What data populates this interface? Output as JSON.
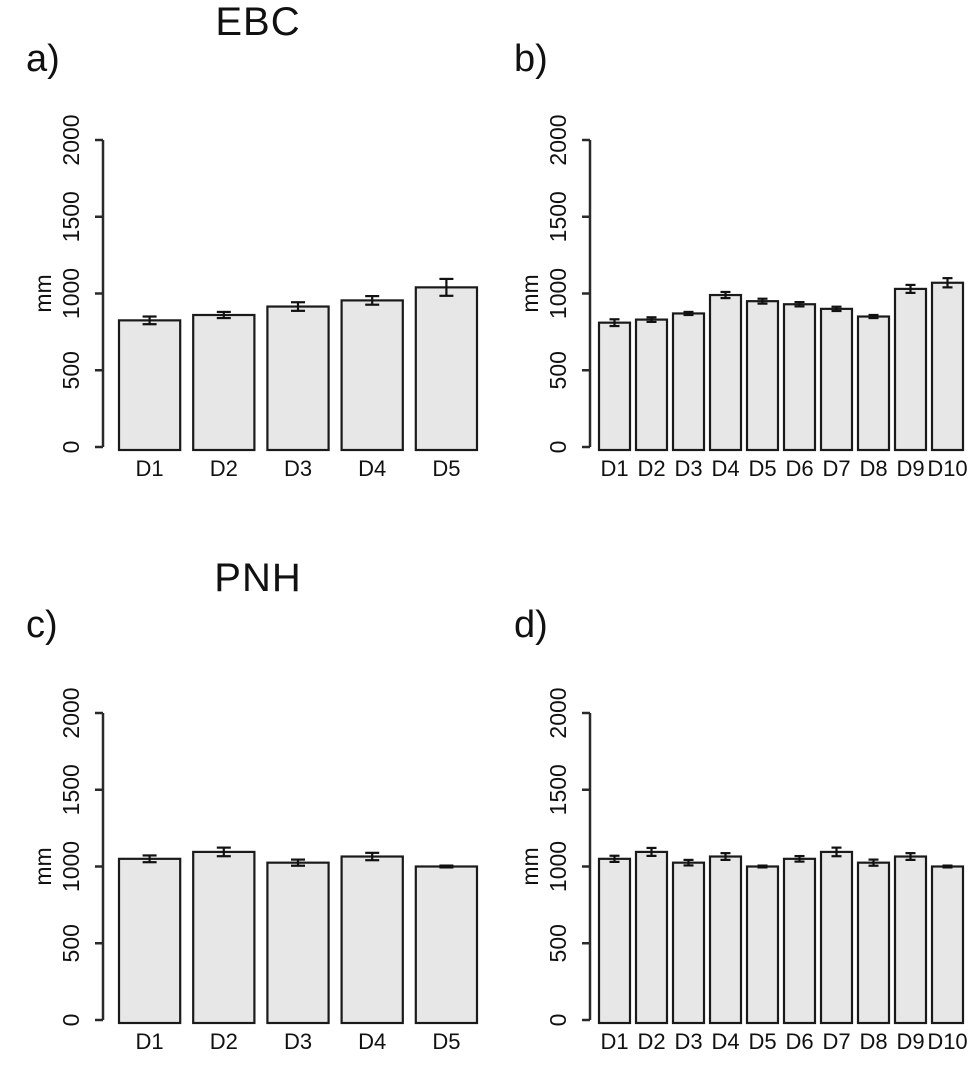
{
  "figure": {
    "sections": [
      {
        "title": "EBC"
      },
      {
        "title": "PNH"
      }
    ]
  },
  "chart_data": [
    {
      "id": "a",
      "panel_label": "a)",
      "section_title": "EBC",
      "type": "bar",
      "ylabel": "mm",
      "xlabel": "",
      "ylim": [
        0,
        2000
      ],
      "yticks": [
        0,
        500,
        1000,
        1500,
        2000
      ],
      "grid": false,
      "legend": "none",
      "bar_fill": "#e7e7e7",
      "bar_stroke": "#1a1a1a",
      "categories": [
        "D1",
        "D2",
        "D3",
        "D4",
        "D5"
      ],
      "values": [
        825,
        860,
        915,
        955,
        1040
      ],
      "errors": [
        25,
        20,
        28,
        28,
        55
      ]
    },
    {
      "id": "b",
      "panel_label": "b)",
      "section_title": "EBC",
      "type": "bar",
      "ylabel": "mm",
      "xlabel": "",
      "ylim": [
        0,
        2000
      ],
      "yticks": [
        0,
        500,
        1000,
        1500,
        2000
      ],
      "grid": false,
      "legend": "none",
      "bar_fill": "#e7e7e7",
      "bar_stroke": "#1a1a1a",
      "categories": [
        "D1",
        "D2",
        "D3",
        "D4",
        "D5",
        "D6",
        "D7",
        "D8",
        "D9",
        "D10"
      ],
      "values": [
        810,
        830,
        870,
        990,
        950,
        930,
        900,
        850,
        1030,
        1070
      ],
      "errors": [
        22,
        15,
        10,
        20,
        16,
        14,
        14,
        10,
        26,
        30
      ]
    },
    {
      "id": "c",
      "panel_label": "c)",
      "section_title": "PNH",
      "type": "bar",
      "ylabel": "mm",
      "xlabel": "",
      "ylim": [
        0,
        2000
      ],
      "yticks": [
        0,
        500,
        1000,
        1500,
        2000
      ],
      "grid": false,
      "legend": "none",
      "bar_fill": "#e7e7e7",
      "bar_stroke": "#1a1a1a",
      "categories": [
        "D1",
        "D2",
        "D3",
        "D4",
        "D5"
      ],
      "values": [
        1050,
        1095,
        1025,
        1065,
        1000
      ],
      "errors": [
        22,
        28,
        20,
        24,
        6
      ]
    },
    {
      "id": "d",
      "panel_label": "d)",
      "section_title": "PNH",
      "type": "bar",
      "ylabel": "mm",
      "xlabel": "",
      "ylim": [
        0,
        2000
      ],
      "yticks": [
        0,
        500,
        1000,
        1500,
        2000
      ],
      "grid": false,
      "legend": "none",
      "bar_fill": "#e7e7e7",
      "bar_stroke": "#1a1a1a",
      "categories": [
        "D1",
        "D2",
        "D3",
        "D4",
        "D5",
        "D6",
        "D7",
        "D8",
        "D9",
        "D10"
      ],
      "values": [
        1050,
        1095,
        1025,
        1065,
        1000,
        1050,
        1095,
        1025,
        1065,
        1000
      ],
      "errors": [
        20,
        26,
        18,
        22,
        6,
        18,
        28,
        20,
        22,
        6
      ]
    }
  ]
}
